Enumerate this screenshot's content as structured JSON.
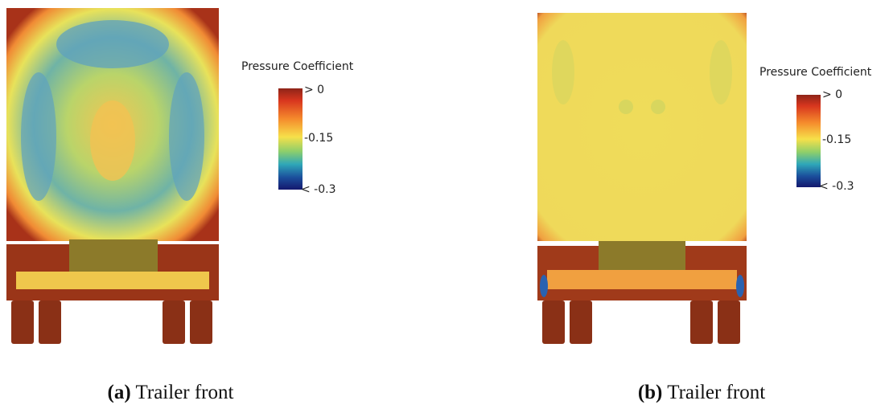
{
  "panels": [
    {
      "label": "(a)",
      "caption": "Trailer front",
      "colorbar": {
        "title": "Pressure Coefficient",
        "ticks": [
          "> 0",
          "-0.15",
          "< -0.3"
        ]
      }
    },
    {
      "label": "(b)",
      "caption": "Trailer front",
      "colorbar": {
        "title": "Pressure Coefficient",
        "ticks": [
          "> 0",
          "-0.15",
          "< -0.3"
        ]
      }
    }
  ]
}
